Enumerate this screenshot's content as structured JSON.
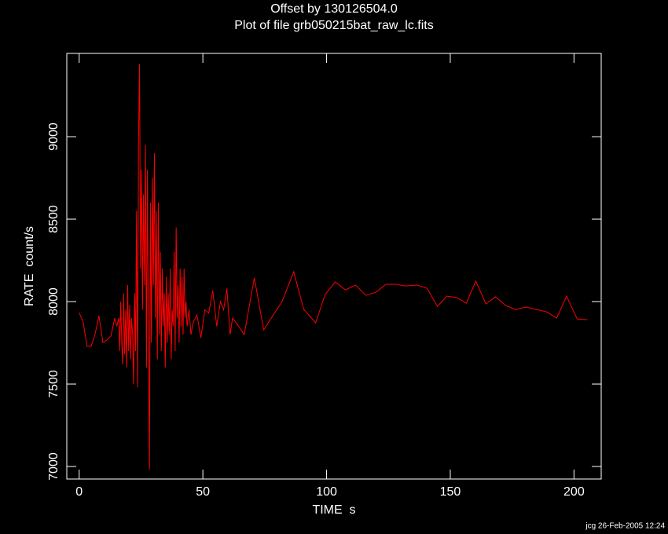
{
  "chart_data": {
    "type": "line",
    "title": "Offset by 130126504.0",
    "subtitle": "Plot of file grb050215bat_raw_lc.fits",
    "x_label": "TIME  s",
    "y_label": "RATE  count/s",
    "footer": "jcg 26-Feb-2005 12:24",
    "xlim": [
      -5,
      211
    ],
    "ylim": [
      6924,
      9505
    ],
    "xticks": [
      0,
      50,
      100,
      150,
      200
    ],
    "yticks": [
      7000,
      7500,
      8000,
      8500,
      9000
    ],
    "x": [
      0,
      1.6,
      3.2,
      4.8,
      6.4,
      8.0,
      9.6,
      11.2,
      12.8,
      14.4,
      15.2,
      16.0,
      16.4,
      16.8,
      17.2,
      17.6,
      18.0,
      18.4,
      18.8,
      19.2,
      19.6,
      20.0,
      20.4,
      20.8,
      21.2,
      21.6,
      22.0,
      22.4,
      22.8,
      23.2,
      23.6,
      24.0,
      24.4,
      24.8,
      25.2,
      25.6,
      26.0,
      26.4,
      26.8,
      27.2,
      27.6,
      28.0,
      28.4,
      28.8,
      29.2,
      29.6,
      30.0,
      30.4,
      30.8,
      31.2,
      31.6,
      32.0,
      32.4,
      32.8,
      33.2,
      33.6,
      34.0,
      34.4,
      34.8,
      35.2,
      35.6,
      36.0,
      36.4,
      36.8,
      37.2,
      37.6,
      38.0,
      38.4,
      38.8,
      39.2,
      39.6,
      40.0,
      40.4,
      40.8,
      41.2,
      41.6,
      42.0,
      42.4,
      42.8,
      43.2,
      43.6,
      44.4,
      45.2,
      46.0,
      47.6,
      49.2,
      50.8,
      52.4,
      54.0,
      55.6,
      57.1,
      58.4,
      59.7,
      61.0,
      62.0,
      63.5,
      66.7,
      70.8,
      74.6,
      82.0,
      86.7,
      90.8,
      95.6,
      99.4,
      103.5,
      107.6,
      111.7,
      115.9,
      120.0,
      124.0,
      128.0,
      132.0,
      136.5,
      140.6,
      144.8,
      148.6,
      152.7,
      156.5,
      160.3,
      164.4,
      168.3,
      172.4,
      176.5,
      180.6,
      184.8,
      188.9,
      193.0,
      197.0,
      201.3,
      205.4
    ],
    "series": [
      {
        "name": "RATE",
        "color": "#ff0000",
        "values": [
          7933,
          7876,
          7729,
          7729,
          7800,
          7914,
          7752,
          7767,
          7790,
          7900,
          7850,
          7900,
          7700,
          8000,
          7750,
          7620,
          8050,
          7680,
          7950,
          7600,
          8100,
          7700,
          7980,
          7650,
          7900,
          7800,
          7500,
          8050,
          7700,
          8550,
          7480,
          8980,
          9440,
          8200,
          8800,
          7950,
          8650,
          8100,
          8950,
          7600,
          8800,
          7800,
          6980,
          8600,
          7750,
          8750,
          8100,
          8900,
          7900,
          8550,
          7650,
          8600,
          7800,
          8300,
          7700,
          8200,
          7850,
          8050,
          7600,
          8150,
          7750,
          8050,
          7800,
          8200,
          7650,
          7950,
          7850,
          8300,
          7700,
          8450,
          7900,
          8100,
          7750,
          8200,
          7850,
          8150,
          7800,
          8200,
          7900,
          8000,
          7850,
          7950,
          7800,
          7870,
          7920,
          7780,
          7950,
          7930,
          8067,
          7850,
          8000,
          7950,
          8080,
          7800,
          7900,
          7870,
          7800,
          8143,
          7829,
          8000,
          8181,
          7952,
          7871,
          8043,
          8119,
          8071,
          8100,
          8038,
          8057,
          8105,
          8105,
          8095,
          8100,
          8081,
          7971,
          8033,
          8024,
          7990,
          8124,
          7986,
          8029,
          7976,
          7952,
          7967,
          7952,
          7938,
          7900,
          8033,
          7895,
          7890
        ]
      }
    ]
  }
}
